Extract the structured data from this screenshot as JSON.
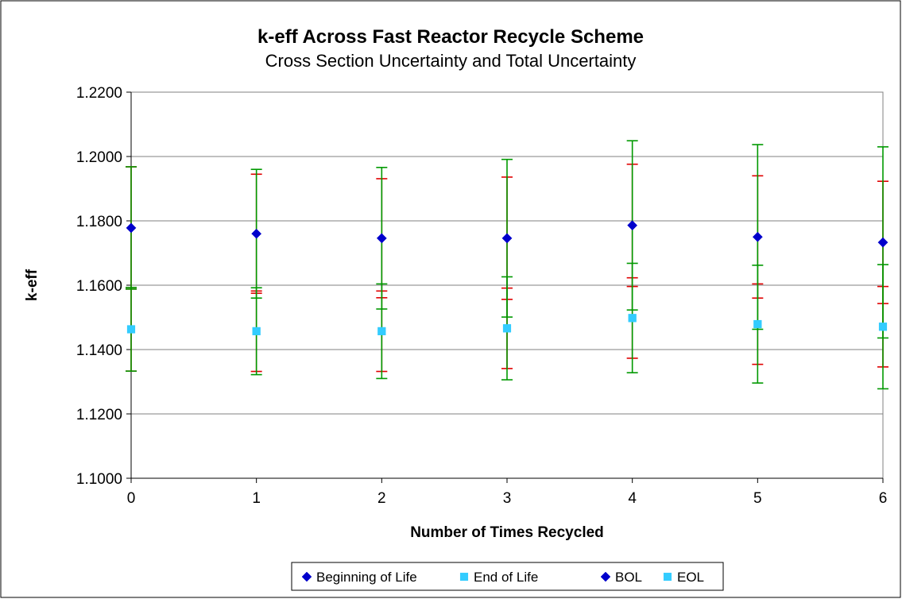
{
  "chart_data": {
    "type": "scatter",
    "title": "k-eff Across Fast Reactor Recycle Scheme",
    "subtitle": "Cross Section Uncertainty and Total Uncertainty",
    "xlabel": "Number of Times Recycled",
    "ylabel": "k-eff",
    "xlim": [
      0,
      6
    ],
    "ylim": [
      1.1,
      1.22
    ],
    "x_ticks": [
      "0",
      "1",
      "2",
      "3",
      "4",
      "5",
      "6"
    ],
    "y_ticks": [
      "1.1000",
      "1.1200",
      "1.1400",
      "1.1600",
      "1.1800",
      "1.2000",
      "1.2200"
    ],
    "grid": "horizontal",
    "legend_position": "bottom",
    "x": [
      0,
      1,
      2,
      3,
      4,
      5,
      6
    ],
    "series": [
      {
        "name": "Beginning of Life",
        "marker": "diamond",
        "color": "#0000cc",
        "values": [
          1.1778,
          1.176,
          1.1746,
          1.1746,
          1.1786,
          1.175,
          1.1733
        ],
        "error": [
          0.019,
          0.0185,
          0.0185,
          0.019,
          0.019,
          0.019,
          0.019
        ],
        "error_color": "#e00000"
      },
      {
        "name": "End of Life",
        "marker": "square",
        "color": "#33ccff",
        "values": [
          1.1463,
          1.1457,
          1.1457,
          1.1466,
          1.1498,
          1.1479,
          1.1471
        ],
        "error": [
          0.013,
          0.0125,
          0.0125,
          0.0125,
          0.0125,
          0.0125,
          0.0125
        ],
        "error_color": "#e00000"
      },
      {
        "name": "BOL",
        "marker": "diamond",
        "color": "#0000cc",
        "values": [
          1.1778,
          1.176,
          1.1746,
          1.1746,
          1.1786,
          1.175,
          1.1733
        ],
        "error": [
          0.019,
          0.02,
          0.022,
          0.0245,
          0.0263,
          0.0287,
          0.0297
        ],
        "error_color": "#009900"
      },
      {
        "name": "EOL",
        "marker": "square",
        "color": "#33ccff",
        "values": [
          1.1463,
          1.1457,
          1.1457,
          1.1466,
          1.1498,
          1.1479,
          1.1471
        ],
        "error": [
          0.013,
          0.0135,
          0.0147,
          0.016,
          0.017,
          0.0183,
          0.0193
        ],
        "error_color": "#009900"
      }
    ]
  }
}
